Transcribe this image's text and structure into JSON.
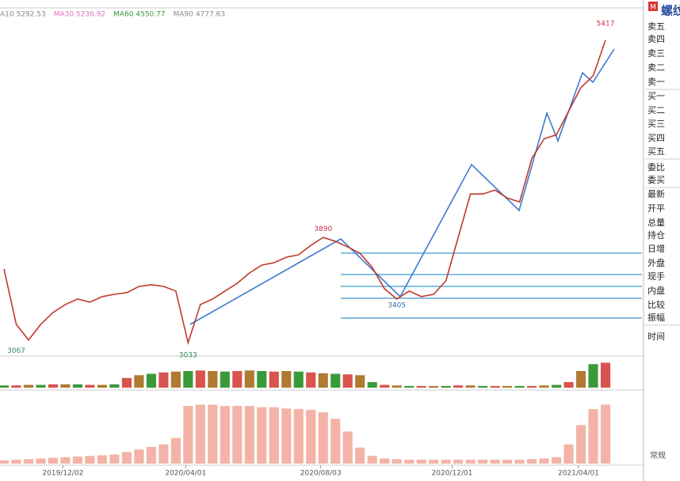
{
  "chart_data": {
    "type": "line",
    "legend_items": [
      {
        "text": "A10 5292.53",
        "color": "#888888"
      },
      {
        "text": "MA30 5236.92",
        "color": "#e070c0"
      },
      {
        "text": "MA60 4550.77",
        "color": "#3a9a3a"
      },
      {
        "text": "MA90 4777.63",
        "color": "#888888"
      }
    ],
    "x": [
      0,
      1,
      2,
      3,
      4,
      5,
      6,
      7,
      8,
      9,
      10,
      11,
      12,
      13,
      14,
      15,
      16,
      17,
      18,
      19,
      20,
      21,
      22,
      23,
      24,
      25,
      26,
      27,
      28,
      29,
      30,
      31,
      32,
      33,
      34,
      35,
      36,
      37,
      38,
      39,
      40,
      41,
      42,
      43,
      44,
      45,
      46,
      47,
      48,
      49
    ],
    "series": [
      {
        "color": "#c0392b",
        "values": [
          3628,
          3217,
          3100,
          3217,
          3305,
          3364,
          3405,
          3382,
          3423,
          3440,
          3452,
          3499,
          3511,
          3499,
          3464,
          3080,
          3364,
          3405,
          3464,
          3522,
          3599,
          3657,
          3675,
          3716,
          3734,
          3804,
          3863,
          3834,
          3792,
          3745,
          3640,
          3481,
          3405,
          3464,
          3423,
          3440,
          3540,
          3863,
          4186,
          4186,
          4215,
          4156,
          4127,
          4450,
          4597,
          4626,
          4802,
          4978,
          5066,
          5330
        ]
      }
    ],
    "xlim": [
      0,
      49
    ],
    "ylim": [
      3040,
      5570
    ],
    "xticks": [
      {
        "value": 4.8,
        "label": "2019/12/02"
      },
      {
        "value": 14.8,
        "label": "2020/04/01"
      },
      {
        "value": 25.8,
        "label": "2020/08/03"
      },
      {
        "value": 36.5,
        "label": "2020/12/01"
      },
      {
        "value": 46.8,
        "label": "2021/04/01"
      }
    ],
    "annotations": [
      {
        "x": 1,
        "value": 3067,
        "color": "#2e8b57"
      },
      {
        "x": 15,
        "value": 3033,
        "color": "#2e8b57"
      },
      {
        "x": 26,
        "value": 3890,
        "color": "#d0304a"
      },
      {
        "x": 32,
        "value": 3405,
        "color": "#3a6ea5"
      },
      {
        "x": 49,
        "value": 5417,
        "color": "#d0304a"
      }
    ],
    "volume": {
      "ylim": [
        0,
        100
      ],
      "values": [
        8,
        8,
        10,
        10,
        12,
        12,
        12,
        10,
        10,
        12,
        35,
        45,
        50,
        55,
        58,
        60,
        62,
        60,
        58,
        60,
        62,
        60,
        58,
        60,
        58,
        55,
        52,
        50,
        48,
        45,
        20,
        10,
        8,
        6,
        6,
        6,
        6,
        8,
        8,
        6,
        6,
        6,
        6,
        6,
        8,
        10,
        20,
        60,
        85,
        90
      ]
    },
    "open_interest": {
      "ylim": [
        0,
        100
      ],
      "values": [
        5,
        6,
        7,
        8,
        9,
        10,
        11,
        12,
        13,
        14,
        18,
        22,
        26,
        30,
        40,
        90,
        92,
        92,
        90,
        90,
        90,
        88,
        88,
        86,
        85,
        84,
        80,
        70,
        50,
        25,
        12,
        8,
        7,
        6,
        6,
        6,
        6,
        6,
        6,
        6,
        6,
        6,
        6,
        7,
        8,
        10,
        30,
        60,
        85,
        92
      ]
    }
  },
  "side_panel": {
    "title": "螺纹",
    "badge": "M",
    "labels": [
      "卖五",
      "卖四",
      "卖三",
      "卖二",
      "卖一",
      "买一",
      "买二",
      "买三",
      "买四",
      "买五",
      "委比",
      "委买",
      "最新",
      "开平",
      "总量",
      "持仓",
      "日增",
      "外盘",
      "现手",
      "内盘",
      "比较",
      "振幅",
      "时间"
    ],
    "mode": "常规"
  }
}
